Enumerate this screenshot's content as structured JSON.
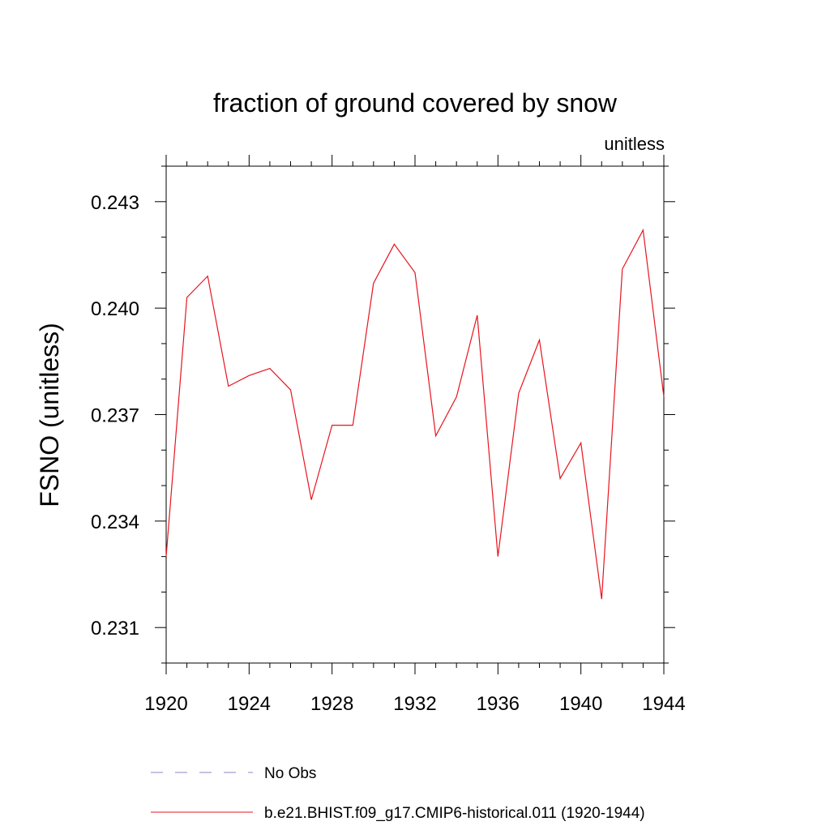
{
  "chart_data": {
    "type": "line",
    "title": "fraction of ground covered by snow",
    "units_label": "unitless",
    "ylabel": "FSNO  (unitless)",
    "xlabel": "",
    "x": [
      1920,
      1921,
      1922,
      1923,
      1924,
      1925,
      1926,
      1927,
      1928,
      1929,
      1930,
      1931,
      1932,
      1933,
      1934,
      1935,
      1936,
      1937,
      1938,
      1939,
      1940,
      1941,
      1942,
      1943,
      1944
    ],
    "xlim": [
      1920,
      1944
    ],
    "ylim": [
      0.23,
      0.244
    ],
    "xticks": [
      1920,
      1924,
      1928,
      1932,
      1936,
      1940,
      1944
    ],
    "xtick_labels": [
      "1920",
      "1924",
      "1928",
      "1932",
      "1936",
      "1940",
      "1944"
    ],
    "yticks": [
      0.231,
      0.234,
      0.237,
      0.24,
      0.243
    ],
    "ytick_labels": [
      "0.231",
      "0.234",
      "0.237",
      "0.240",
      "0.243"
    ],
    "y_minor_step": 0.001,
    "grid": false,
    "legend_position": "bottom",
    "series": [
      {
        "name": "b.e21.BHIST.f09_g17.CMIP6-historical.011 (1920-1944)",
        "color": "#e8141e",
        "style": "solid",
        "values": [
          0.233,
          0.2403,
          0.2409,
          0.2378,
          0.2381,
          0.2383,
          0.2377,
          0.2346,
          0.2367,
          0.2367,
          0.2407,
          0.2418,
          0.241,
          0.2364,
          0.2375,
          0.2398,
          0.233,
          0.2376,
          0.2391,
          0.2352,
          0.2362,
          0.2318,
          0.2411,
          0.2422,
          0.2375
        ]
      }
    ],
    "legend": [
      {
        "label": "No Obs",
        "color": "#8a84c8",
        "style": "dashed"
      },
      {
        "label": "b.e21.BHIST.f09_g17.CMIP6-historical.011 (1920-1944)",
        "color": "#e8141e",
        "style": "solid"
      }
    ]
  }
}
